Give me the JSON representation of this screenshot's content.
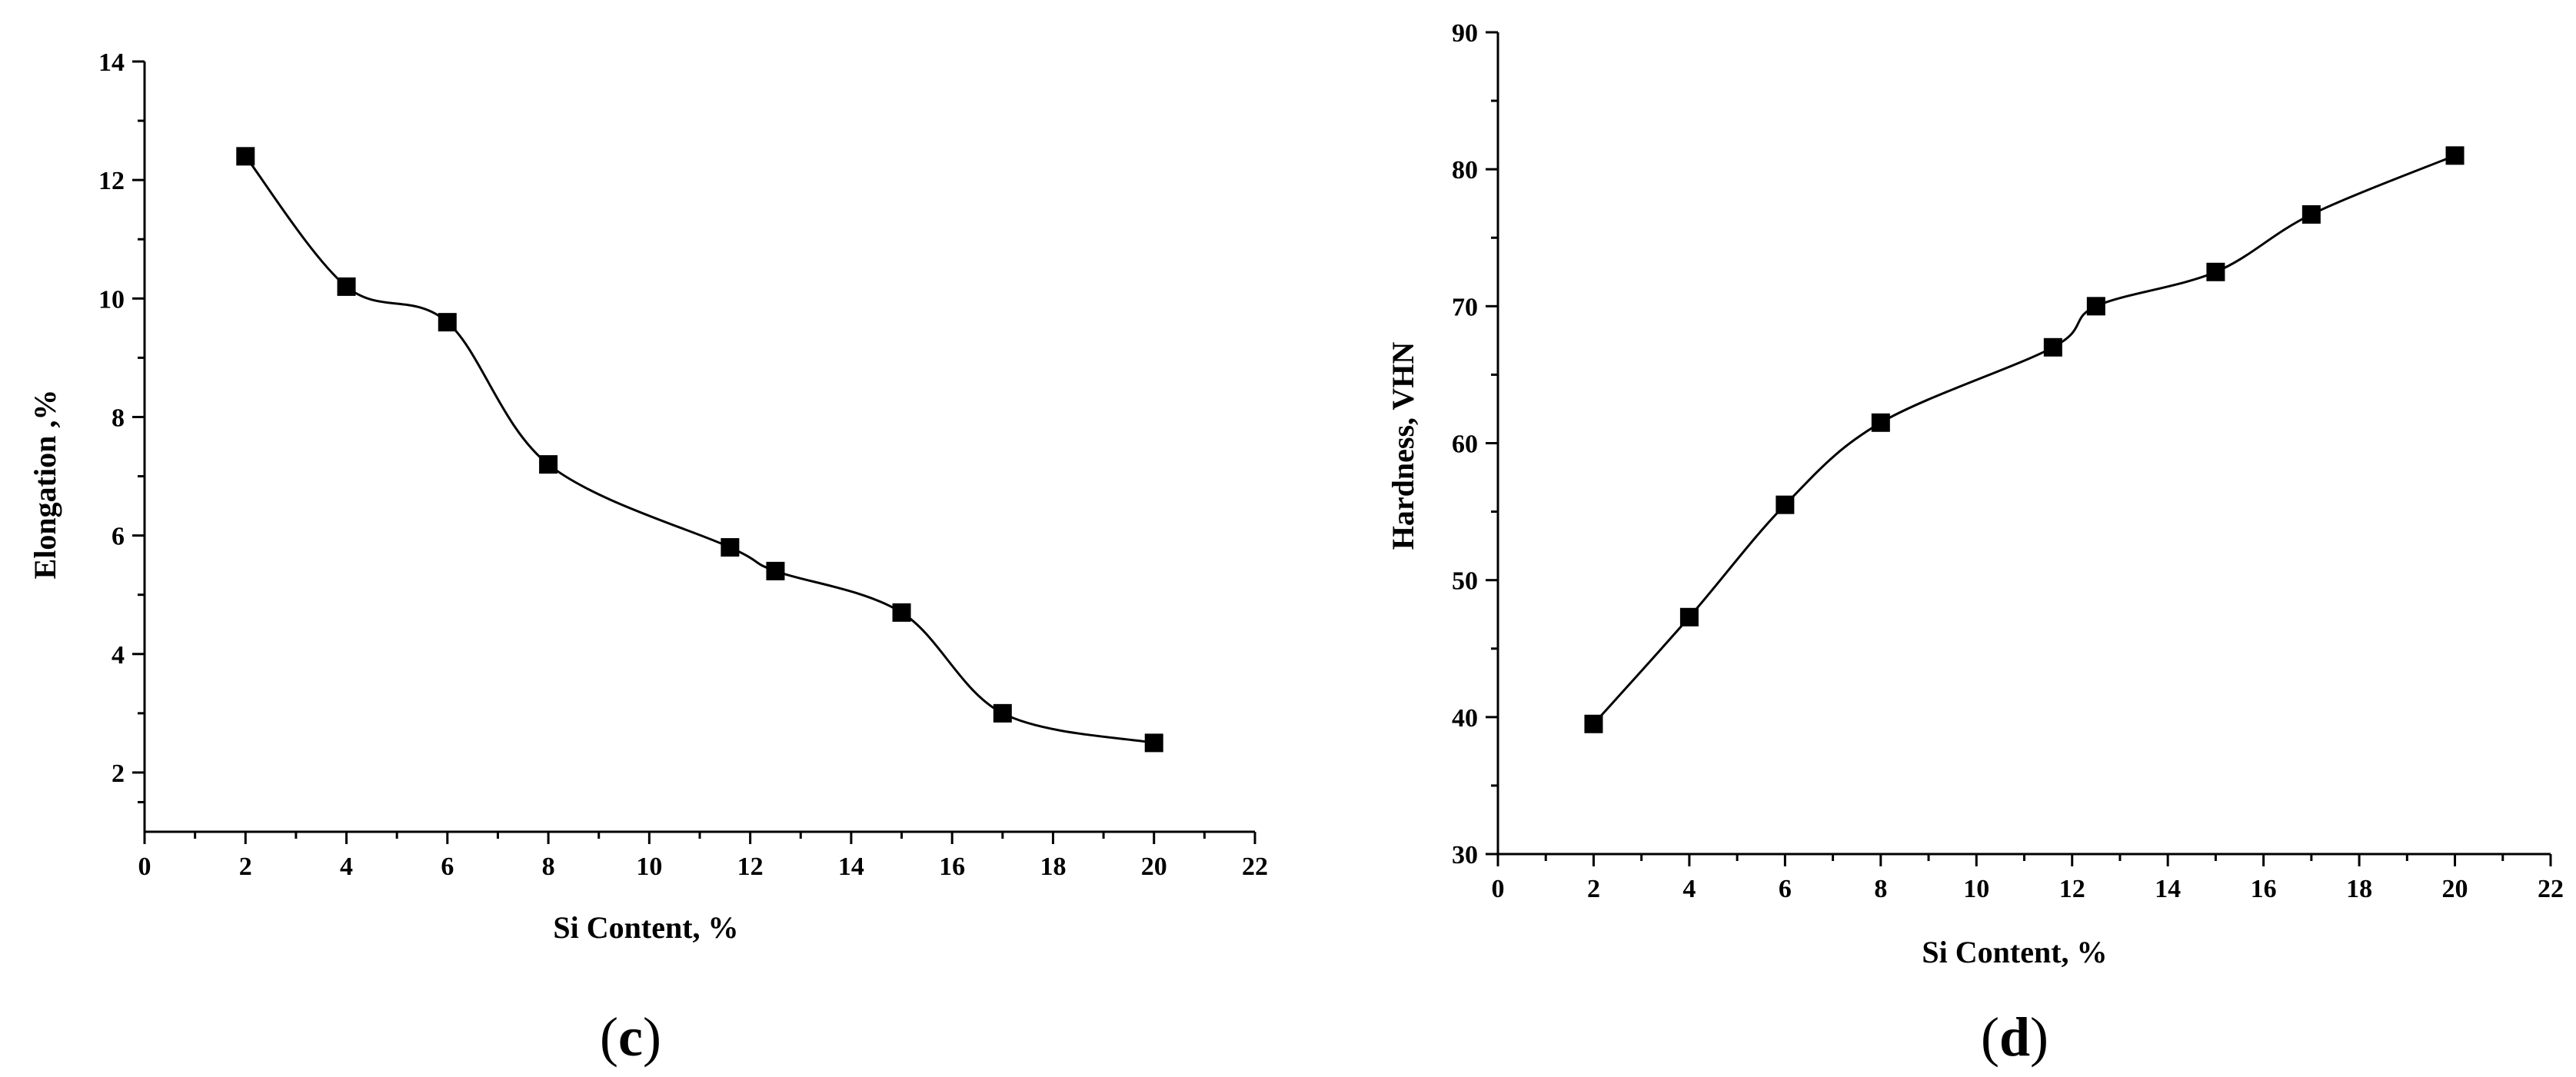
{
  "chart_data": [
    {
      "type": "line",
      "panel_label": {
        "open": "(",
        "letter": "c",
        "close": ")"
      },
      "title": "",
      "xlabel": "Si Content, %",
      "ylabel": "Elongation ,%",
      "xlim": [
        0,
        22
      ],
      "ylim": [
        1,
        14
      ],
      "xticks": [
        0,
        2,
        4,
        6,
        8,
        10,
        12,
        14,
        16,
        18,
        20,
        22
      ],
      "yticks": [
        2,
        4,
        6,
        8,
        10,
        12,
        14
      ],
      "grid": false,
      "marker": "square",
      "series": [
        {
          "x": [
            2,
            4,
            6,
            8,
            11.6,
            12.5,
            15,
            17,
            20
          ],
          "y": [
            12.4,
            10.2,
            9.6,
            7.2,
            5.8,
            5.4,
            4.7,
            3.0,
            2.5
          ]
        }
      ]
    },
    {
      "type": "line",
      "panel_label": {
        "open": "(",
        "letter": "d",
        "close": ")"
      },
      "title": "",
      "xlabel": "Si Content, %",
      "ylabel": "Hardness, VHN",
      "xlim": [
        0,
        22
      ],
      "ylim": [
        30,
        90
      ],
      "xticks": [
        0,
        2,
        4,
        6,
        8,
        10,
        12,
        14,
        16,
        18,
        20,
        22
      ],
      "yticks": [
        30,
        40,
        50,
        60,
        70,
        80,
        90
      ],
      "grid": false,
      "marker": "square",
      "series": [
        {
          "x": [
            2,
            4,
            6,
            8,
            11.6,
            12.5,
            15,
            17,
            20
          ],
          "y": [
            39.5,
            47.3,
            55.5,
            61.5,
            67.0,
            70.0,
            72.5,
            76.7,
            81.0
          ]
        }
      ]
    }
  ]
}
